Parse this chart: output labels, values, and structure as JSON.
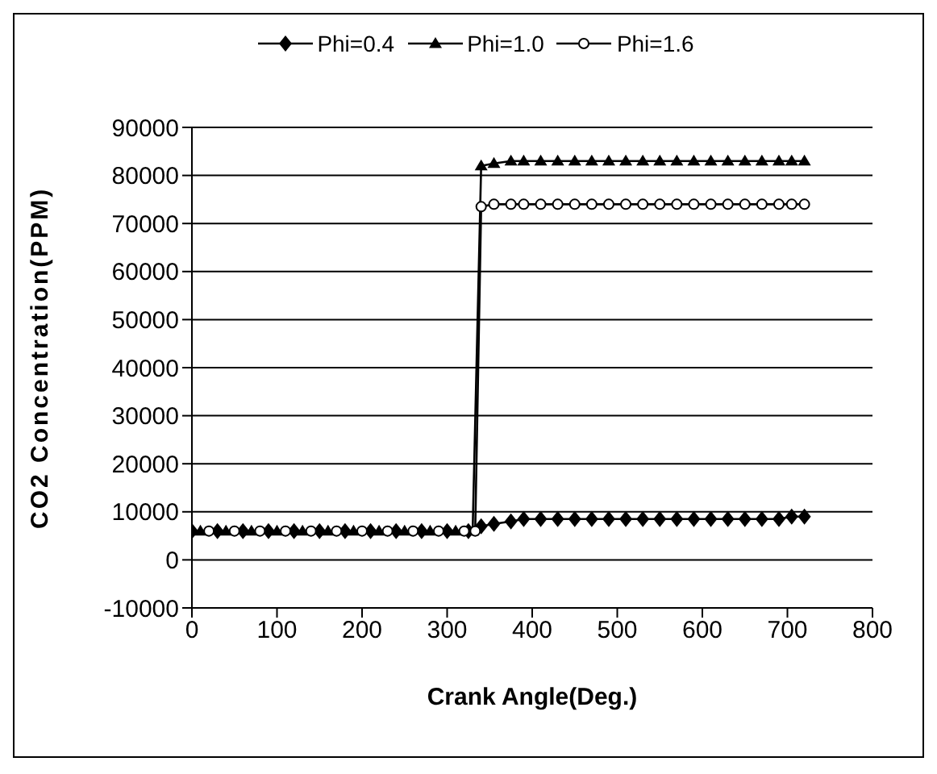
{
  "chart_data": {
    "type": "line",
    "xlabel": "Crank Angle(Deg.)",
    "ylabel": "CO2 Concentration(PPM)",
    "series": [
      {
        "name": "Phi=0.4",
        "color": "#000000",
        "marker": "diamond",
        "x": [
          0,
          30,
          60,
          90,
          120,
          150,
          180,
          210,
          240,
          270,
          300,
          325,
          340,
          355,
          375,
          390,
          410,
          430,
          450,
          470,
          490,
          510,
          530,
          550,
          570,
          590,
          610,
          630,
          650,
          670,
          690,
          705,
          720
        ],
        "values": [
          6000,
          6000,
          6000,
          6000,
          6000,
          6000,
          6000,
          6000,
          6000,
          6000,
          6000,
          6000,
          7000,
          7500,
          8000,
          8500,
          8500,
          8500,
          8500,
          8500,
          8500,
          8500,
          8500,
          8500,
          8500,
          8500,
          8500,
          8500,
          8500,
          8500,
          8500,
          9000,
          9000
        ]
      },
      {
        "name": "Phi=1.0",
        "color": "#000000",
        "marker": "triangle",
        "x": [
          10,
          40,
          70,
          100,
          130,
          160,
          190,
          220,
          250,
          280,
          310,
          330,
          340,
          355,
          375,
          390,
          410,
          430,
          450,
          470,
          490,
          510,
          530,
          550,
          570,
          590,
          610,
          630,
          650,
          670,
          690,
          705,
          720
        ],
        "values": [
          6000,
          6000,
          6000,
          6000,
          6000,
          6000,
          6000,
          6000,
          6000,
          6000,
          6000,
          6000,
          82000,
          82500,
          83000,
          83000,
          83000,
          83000,
          83000,
          83000,
          83000,
          83000,
          83000,
          83000,
          83000,
          83000,
          83000,
          83000,
          83000,
          83000,
          83000,
          83000,
          83000
        ]
      },
      {
        "name": "Phi=1.6",
        "color": "#000000",
        "marker": "circle",
        "x": [
          20,
          50,
          80,
          110,
          140,
          170,
          200,
          230,
          260,
          290,
          320,
          333,
          340,
          355,
          375,
          390,
          410,
          430,
          450,
          470,
          490,
          510,
          530,
          550,
          570,
          590,
          610,
          630,
          650,
          670,
          690,
          705,
          720
        ],
        "values": [
          6000,
          6000,
          6000,
          6000,
          6000,
          6000,
          6000,
          6000,
          6000,
          6000,
          6000,
          6000,
          73500,
          74000,
          74000,
          74000,
          74000,
          74000,
          74000,
          74000,
          74000,
          74000,
          74000,
          74000,
          74000,
          74000,
          74000,
          74000,
          74000,
          74000,
          74000,
          74000,
          74000
        ]
      }
    ],
    "xlim": [
      0,
      800
    ],
    "xticks": [
      0,
      100,
      200,
      300,
      400,
      500,
      600,
      700,
      800
    ],
    "ylim": [
      -10000,
      90000
    ],
    "yticks": [
      -10000,
      0,
      10000,
      20000,
      30000,
      40000,
      50000,
      60000,
      70000,
      80000,
      90000
    ],
    "grid": "y",
    "legend": "top",
    "line_style": "solid"
  }
}
